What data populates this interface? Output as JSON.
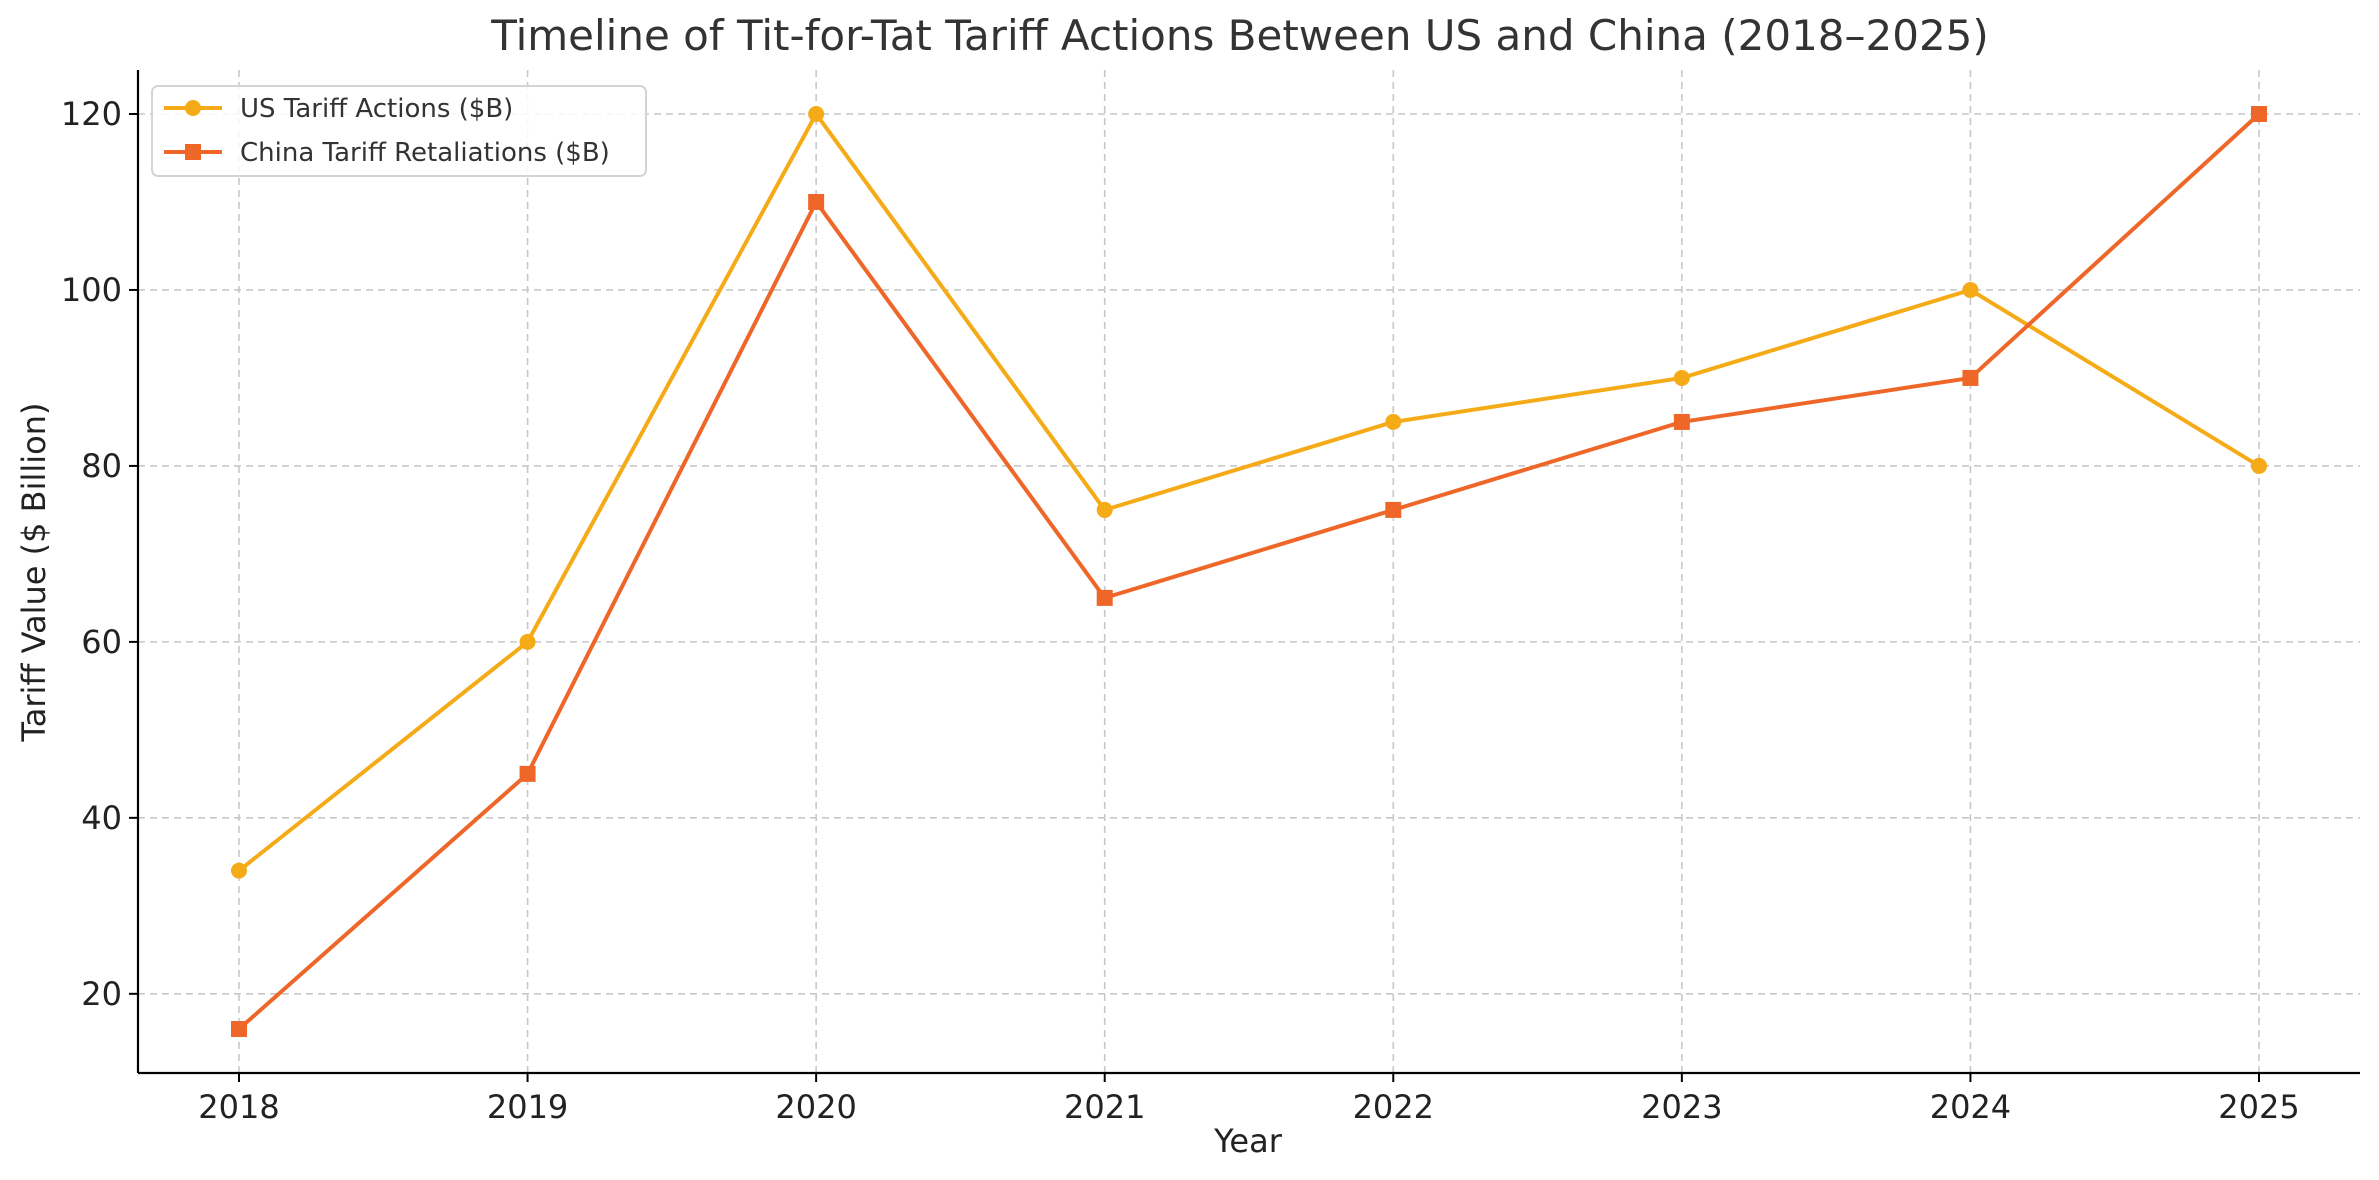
{
  "chart_data": {
    "type": "line",
    "title": "Timeline of Tit-for-Tat Tariff Actions Between US and China (2018–2025)",
    "xlabel": "Year",
    "ylabel": "Tariff Value ($ Billion)",
    "x": [
      "2018",
      "2019",
      "2020",
      "2021",
      "2022",
      "2023",
      "2024",
      "2025"
    ],
    "xlim": [
      2017.65,
      2025.35
    ],
    "ylim": [
      11,
      125
    ],
    "yticks": [
      20,
      40,
      60,
      80,
      100,
      120
    ],
    "grid": true,
    "legend_position": "top-left",
    "series": [
      {
        "name": "US Tariff Actions ($B)",
        "values": [
          34,
          60,
          120,
          75,
          85,
          90,
          100,
          80
        ],
        "color": "#F5AB17",
        "marker": "circle"
      },
      {
        "name": "China Tariff Retaliations ($B)",
        "values": [
          16,
          45,
          110,
          65,
          75,
          85,
          90,
          120
        ],
        "color": "#EE6728",
        "marker": "square"
      }
    ]
  }
}
